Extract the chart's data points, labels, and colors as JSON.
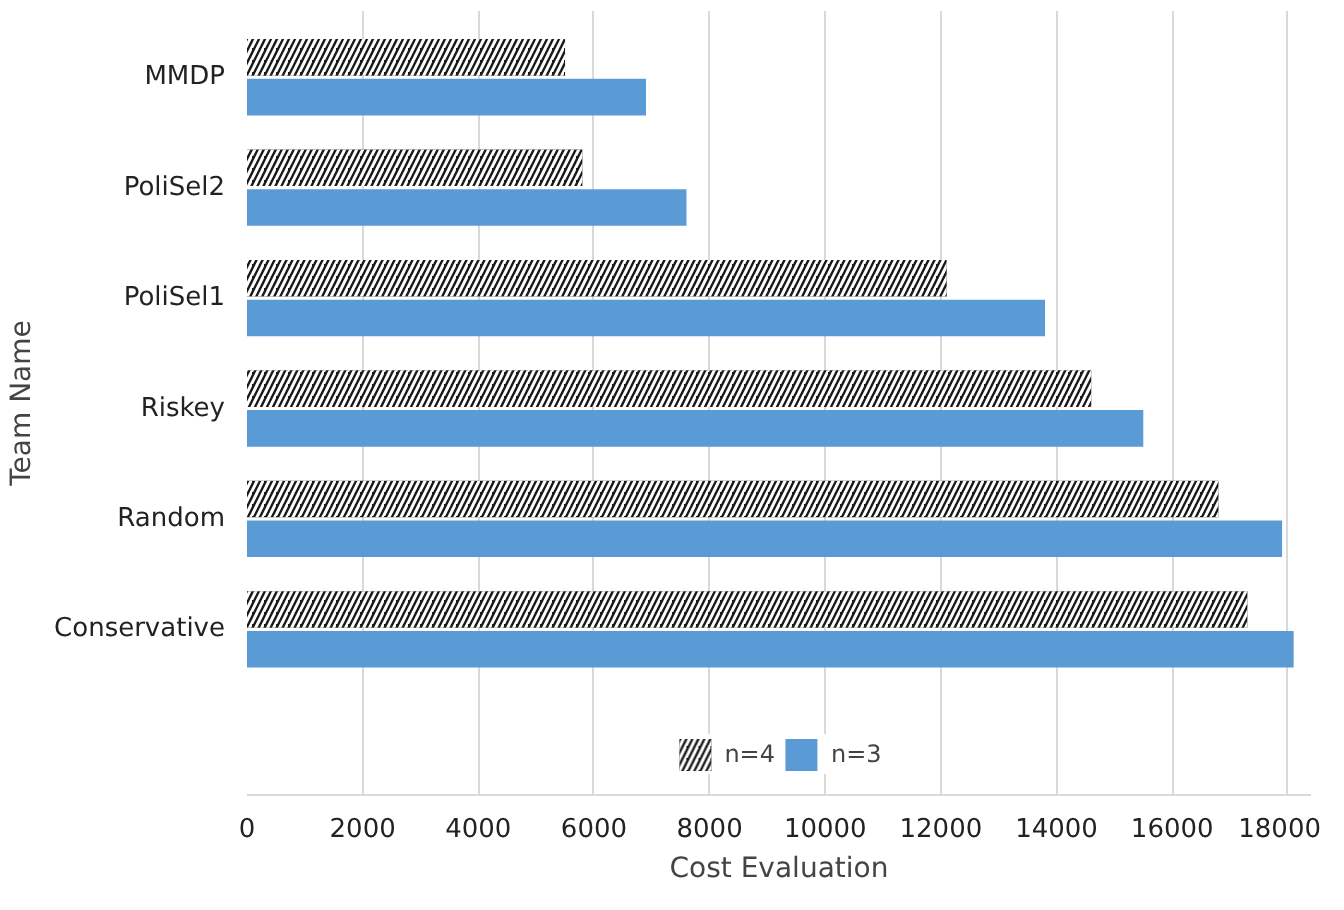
{
  "chart_data": {
    "type": "bar",
    "orientation": "horizontal",
    "ylabel": "Team Name",
    "xlabel": "Cost Evaluation",
    "categories": [
      "MMDP",
      "PoliSel2",
      "PoliSel1",
      "Riskey",
      "Random",
      "Conservative"
    ],
    "series": [
      {
        "name": "n=4",
        "color": "#1a1a1a",
        "values": [
          5500,
          5800,
          12100,
          14600,
          16800,
          17300
        ]
      },
      {
        "name": "n=3",
        "color": "#5b9bd5",
        "values": [
          6900,
          7600,
          13800,
          15500,
          17900,
          18100
        ]
      }
    ],
    "xlim": [
      0,
      18400
    ],
    "xticks": [
      0,
      2000,
      4000,
      6000,
      8000,
      10000,
      12000,
      14000,
      16000,
      18000
    ],
    "grid": "x",
    "legend": "bottom"
  }
}
